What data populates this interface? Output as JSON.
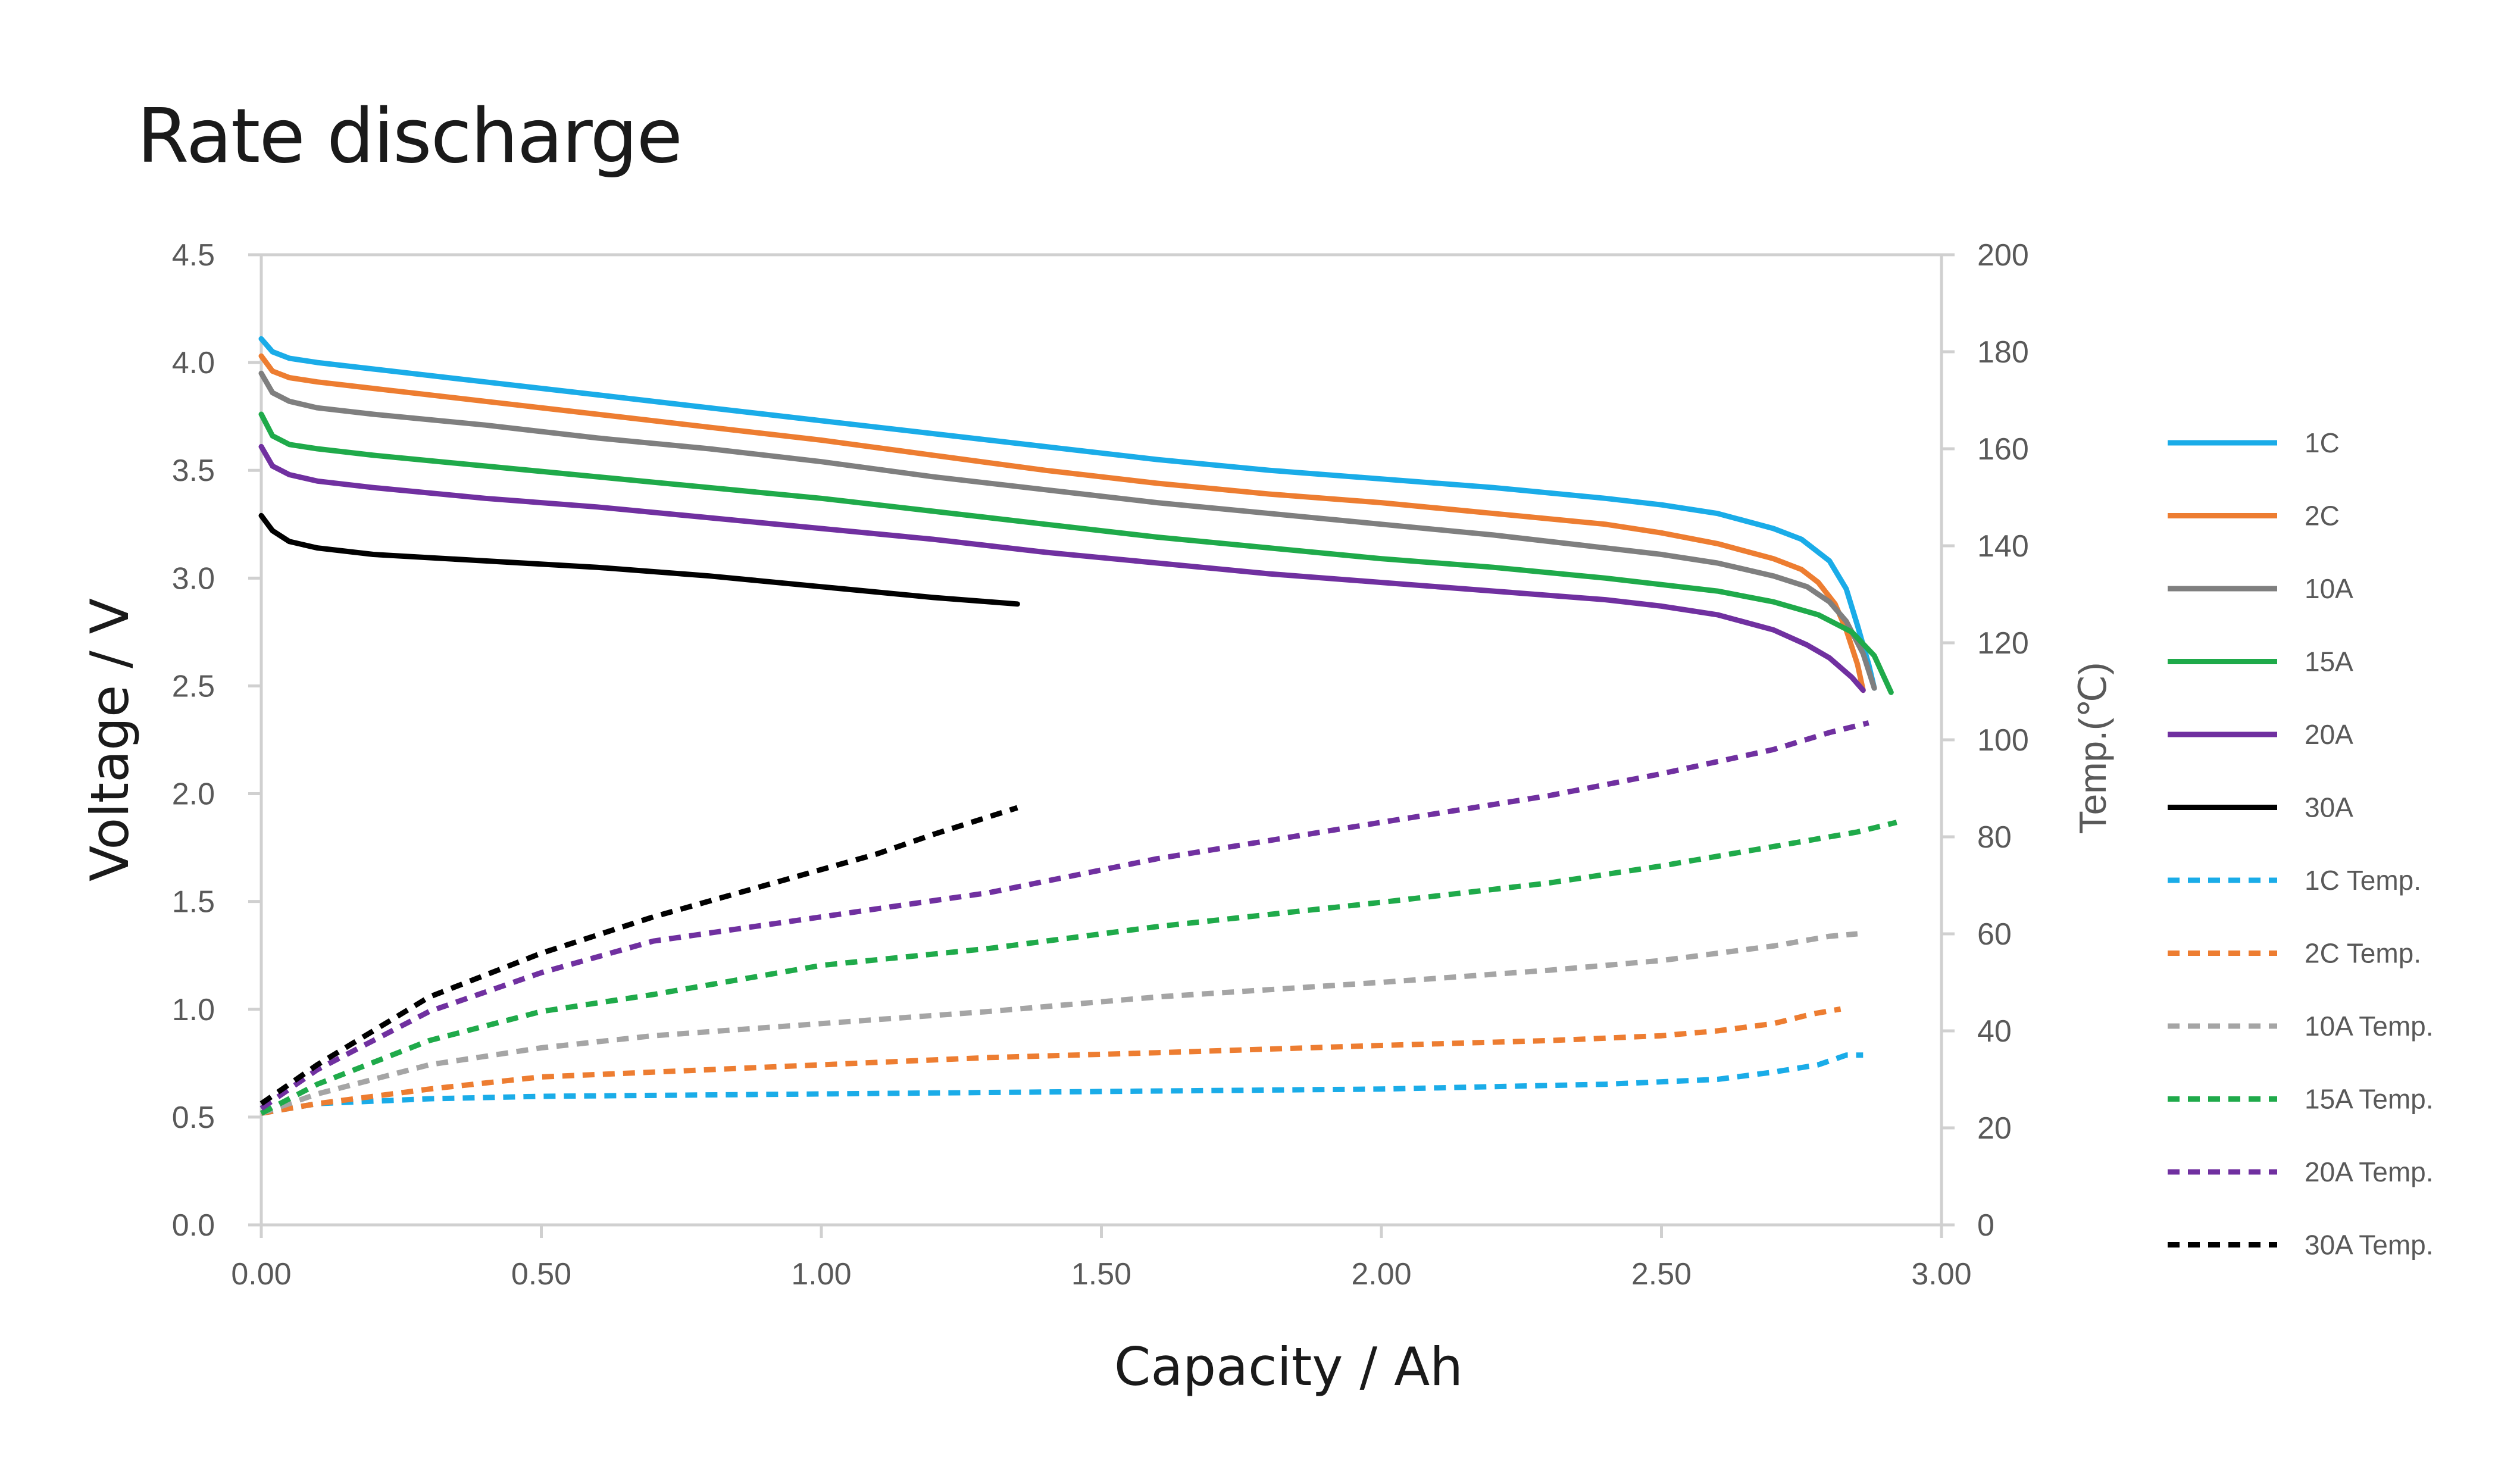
{
  "title": "Rate discharge",
  "chart_data": {
    "type": "line",
    "title": "Rate discharge",
    "xlabel": "Capacity / Ah",
    "ylabel": "Voltage / V",
    "y2label": "Temp.(℃)",
    "xlim": [
      0,
      3
    ],
    "ylim": [
      0,
      4.5
    ],
    "y2lim": [
      0,
      200
    ],
    "grid": false,
    "legend_position": "right",
    "x_ticks": [
      "0.00",
      "0.50",
      "1.00",
      "1.50",
      "2.00",
      "2.50",
      "3.00"
    ],
    "y_ticks": [
      "0.0",
      "0.5",
      "1.0",
      "1.5",
      "2.0",
      "2.5",
      "3.0",
      "3.5",
      "4.0",
      "4.5"
    ],
    "y2_ticks": [
      "0",
      "20",
      "40",
      "60",
      "80",
      "100",
      "120",
      "140",
      "160",
      "180",
      "200"
    ],
    "series": [
      {
        "name": "1C",
        "axis": "voltage",
        "style": "solid",
        "color": "#1AACE8",
        "x": [
          0,
          0.02,
          0.05,
          0.1,
          0.2,
          0.4,
          0.6,
          0.8,
          1.0,
          1.2,
          1.4,
          1.6,
          1.8,
          2.0,
          2.2,
          2.4,
          2.5,
          2.6,
          2.7,
          2.75,
          2.8,
          2.83,
          2.85,
          2.87,
          2.88
        ],
        "y": [
          4.11,
          4.05,
          4.02,
          4.0,
          3.97,
          3.91,
          3.85,
          3.79,
          3.73,
          3.67,
          3.61,
          3.55,
          3.5,
          3.46,
          3.42,
          3.37,
          3.34,
          3.3,
          3.23,
          3.18,
          3.08,
          2.95,
          2.78,
          2.6,
          2.49
        ]
      },
      {
        "name": "2C",
        "axis": "voltage",
        "style": "solid",
        "color": "#ED7D31",
        "x": [
          0,
          0.02,
          0.05,
          0.1,
          0.2,
          0.4,
          0.6,
          0.8,
          1.0,
          1.2,
          1.4,
          1.6,
          1.8,
          2.0,
          2.2,
          2.4,
          2.5,
          2.6,
          2.7,
          2.75,
          2.78,
          2.81,
          2.83,
          2.85,
          2.86
        ],
        "y": [
          4.03,
          3.96,
          3.93,
          3.91,
          3.88,
          3.82,
          3.76,
          3.7,
          3.64,
          3.57,
          3.5,
          3.44,
          3.39,
          3.35,
          3.3,
          3.25,
          3.21,
          3.16,
          3.09,
          3.04,
          2.98,
          2.88,
          2.76,
          2.6,
          2.48
        ]
      },
      {
        "name": "10A",
        "axis": "voltage",
        "style": "solid",
        "color": "#7F7F7F",
        "x": [
          0,
          0.02,
          0.05,
          0.1,
          0.2,
          0.4,
          0.6,
          0.8,
          1.0,
          1.2,
          1.4,
          1.6,
          1.8,
          2.0,
          2.2,
          2.4,
          2.5,
          2.6,
          2.7,
          2.76,
          2.8,
          2.83,
          2.86,
          2.88
        ],
        "y": [
          3.95,
          3.86,
          3.82,
          3.79,
          3.76,
          3.71,
          3.65,
          3.6,
          3.54,
          3.47,
          3.41,
          3.35,
          3.3,
          3.25,
          3.2,
          3.14,
          3.11,
          3.07,
          3.01,
          2.96,
          2.89,
          2.8,
          2.65,
          2.49
        ]
      },
      {
        "name": "15A",
        "axis": "voltage",
        "style": "solid",
        "color": "#1FAA4A",
        "x": [
          0,
          0.02,
          0.05,
          0.1,
          0.2,
          0.4,
          0.6,
          0.8,
          1.0,
          1.2,
          1.4,
          1.6,
          1.8,
          2.0,
          2.2,
          2.4,
          2.5,
          2.6,
          2.7,
          2.78,
          2.84,
          2.88,
          2.91
        ],
        "y": [
          3.76,
          3.66,
          3.62,
          3.6,
          3.57,
          3.52,
          3.47,
          3.42,
          3.37,
          3.31,
          3.25,
          3.19,
          3.14,
          3.09,
          3.05,
          3.0,
          2.97,
          2.94,
          2.89,
          2.83,
          2.75,
          2.64,
          2.47
        ]
      },
      {
        "name": "20A",
        "axis": "voltage",
        "style": "solid",
        "color": "#7030A0",
        "x": [
          0,
          0.02,
          0.05,
          0.1,
          0.2,
          0.4,
          0.6,
          0.8,
          1.0,
          1.2,
          1.4,
          1.6,
          1.8,
          2.0,
          2.2,
          2.4,
          2.5,
          2.6,
          2.7,
          2.76,
          2.8,
          2.84,
          2.86
        ],
        "y": [
          3.61,
          3.52,
          3.48,
          3.45,
          3.42,
          3.37,
          3.33,
          3.28,
          3.23,
          3.18,
          3.12,
          3.07,
          3.02,
          2.98,
          2.94,
          2.9,
          2.87,
          2.83,
          2.76,
          2.69,
          2.63,
          2.54,
          2.48
        ]
      },
      {
        "name": "30A",
        "axis": "voltage",
        "style": "solid",
        "color": "#000000",
        "x": [
          0,
          0.02,
          0.05,
          0.1,
          0.2,
          0.4,
          0.6,
          0.8,
          1.0,
          1.2,
          1.35
        ],
        "y": [
          3.29,
          3.22,
          3.17,
          3.14,
          3.11,
          3.08,
          3.05,
          3.01,
          2.96,
          2.91,
          2.88
        ]
      },
      {
        "name": "1C Temp.",
        "axis": "temperature",
        "style": "dashed",
        "color": "#1AACE8",
        "x": [
          0,
          0.1,
          0.3,
          0.5,
          1.0,
          1.5,
          2.0,
          2.4,
          2.6,
          2.7,
          2.78,
          2.83,
          2.86
        ],
        "y": [
          23,
          25,
          26,
          26.5,
          27,
          27.5,
          28,
          29,
          30,
          31.5,
          33,
          35,
          35
        ]
      },
      {
        "name": "2C Temp.",
        "axis": "temperature",
        "style": "dashed",
        "color": "#ED7D31",
        "x": [
          0,
          0.1,
          0.3,
          0.5,
          0.7,
          1.0,
          1.3,
          1.6,
          2.0,
          2.3,
          2.5,
          2.6,
          2.7,
          2.77,
          2.82
        ],
        "y": [
          23,
          25,
          28,
          30.5,
          31.5,
          33,
          34.5,
          35.5,
          37,
          38,
          39,
          40,
          41.5,
          43.5,
          44.5
        ]
      },
      {
        "name": "10A Temp.",
        "axis": "temperature",
        "style": "dashed",
        "color": "#A5A5A5",
        "x": [
          0,
          0.1,
          0.3,
          0.5,
          0.7,
          1.0,
          1.3,
          1.6,
          2.0,
          2.3,
          2.5,
          2.6,
          2.7,
          2.8,
          2.85
        ],
        "y": [
          23,
          27,
          33,
          36.5,
          39,
          41.5,
          44,
          47,
          50,
          52.5,
          54.5,
          56,
          57.5,
          59.5,
          60
        ]
      },
      {
        "name": "15A Temp.",
        "axis": "temperature",
        "style": "dashed",
        "color": "#1FAA4A",
        "x": [
          0,
          0.1,
          0.3,
          0.5,
          0.7,
          1.0,
          1.3,
          1.6,
          2.0,
          2.3,
          2.5,
          2.7,
          2.85,
          2.92
        ],
        "y": [
          23,
          29,
          38,
          44,
          47.5,
          53.5,
          57,
          61.5,
          66.5,
          70.5,
          74,
          78,
          81,
          83
        ]
      },
      {
        "name": "20A Temp.",
        "axis": "temperature",
        "style": "dashed",
        "color": "#7030A0",
        "x": [
          0,
          0.1,
          0.3,
          0.5,
          0.7,
          1.0,
          1.3,
          1.6,
          2.0,
          2.3,
          2.5,
          2.7,
          2.8,
          2.87
        ],
        "y": [
          24,
          32,
          44,
          52,
          58.5,
          63.5,
          68.5,
          75.5,
          83,
          88.5,
          93,
          98,
          101.5,
          103.5
        ]
      },
      {
        "name": "30A Temp.",
        "axis": "temperature",
        "style": "dashed",
        "color": "#000000",
        "x": [
          0,
          0.1,
          0.3,
          0.5,
          0.7,
          0.9,
          1.1,
          1.2,
          1.35
        ],
        "y": [
          25,
          33,
          47,
          56,
          63.5,
          70,
          76.5,
          80.5,
          86
        ]
      }
    ]
  }
}
